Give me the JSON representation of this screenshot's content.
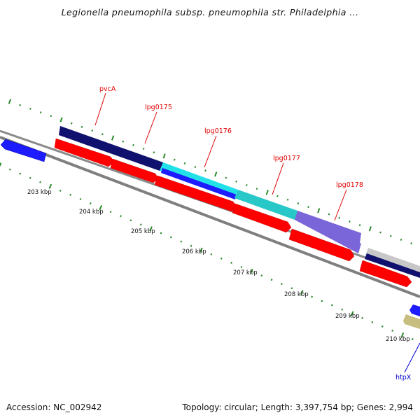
{
  "title": "Legionella pneumophila subsp. pneumophila str. Philadelphia ...",
  "footer": {
    "accession": "Accession: NC_002942",
    "topology": "Topology: circular; Length: 3,397,754 bp; Genes: 2,994"
  },
  "kbp_labels": [
    "203 kbp",
    "204 kbp",
    "205 kbp",
    "206 kbp",
    "207 kbp",
    "208 kbp",
    "209 kbp",
    "210 kbp"
  ],
  "gene_labels": [
    {
      "text": "pvcA",
      "color": "#e00000"
    },
    {
      "text": "lpg0175",
      "color": "#e00000"
    },
    {
      "text": "lpg0176",
      "color": "#e00000"
    },
    {
      "text": "lpg0177",
      "color": "#e00000"
    },
    {
      "text": "lpg0178",
      "color": "#e00000"
    },
    {
      "text": "htpX",
      "color": "#0000cc"
    }
  ],
  "colors": {
    "cds": "#ff0000",
    "gene_blue": "#1c1cff",
    "backbone": "#8a8a8a",
    "tick": "#2a8a2a",
    "feature_navy": "#10106e",
    "feature_cyan": "#22e0e8",
    "feature_teal": "#28c8c8",
    "feature_lavender": "#7a66d8",
    "feature_grey": "#c0c0c0",
    "feature_khaki": "#c8bd80"
  }
}
